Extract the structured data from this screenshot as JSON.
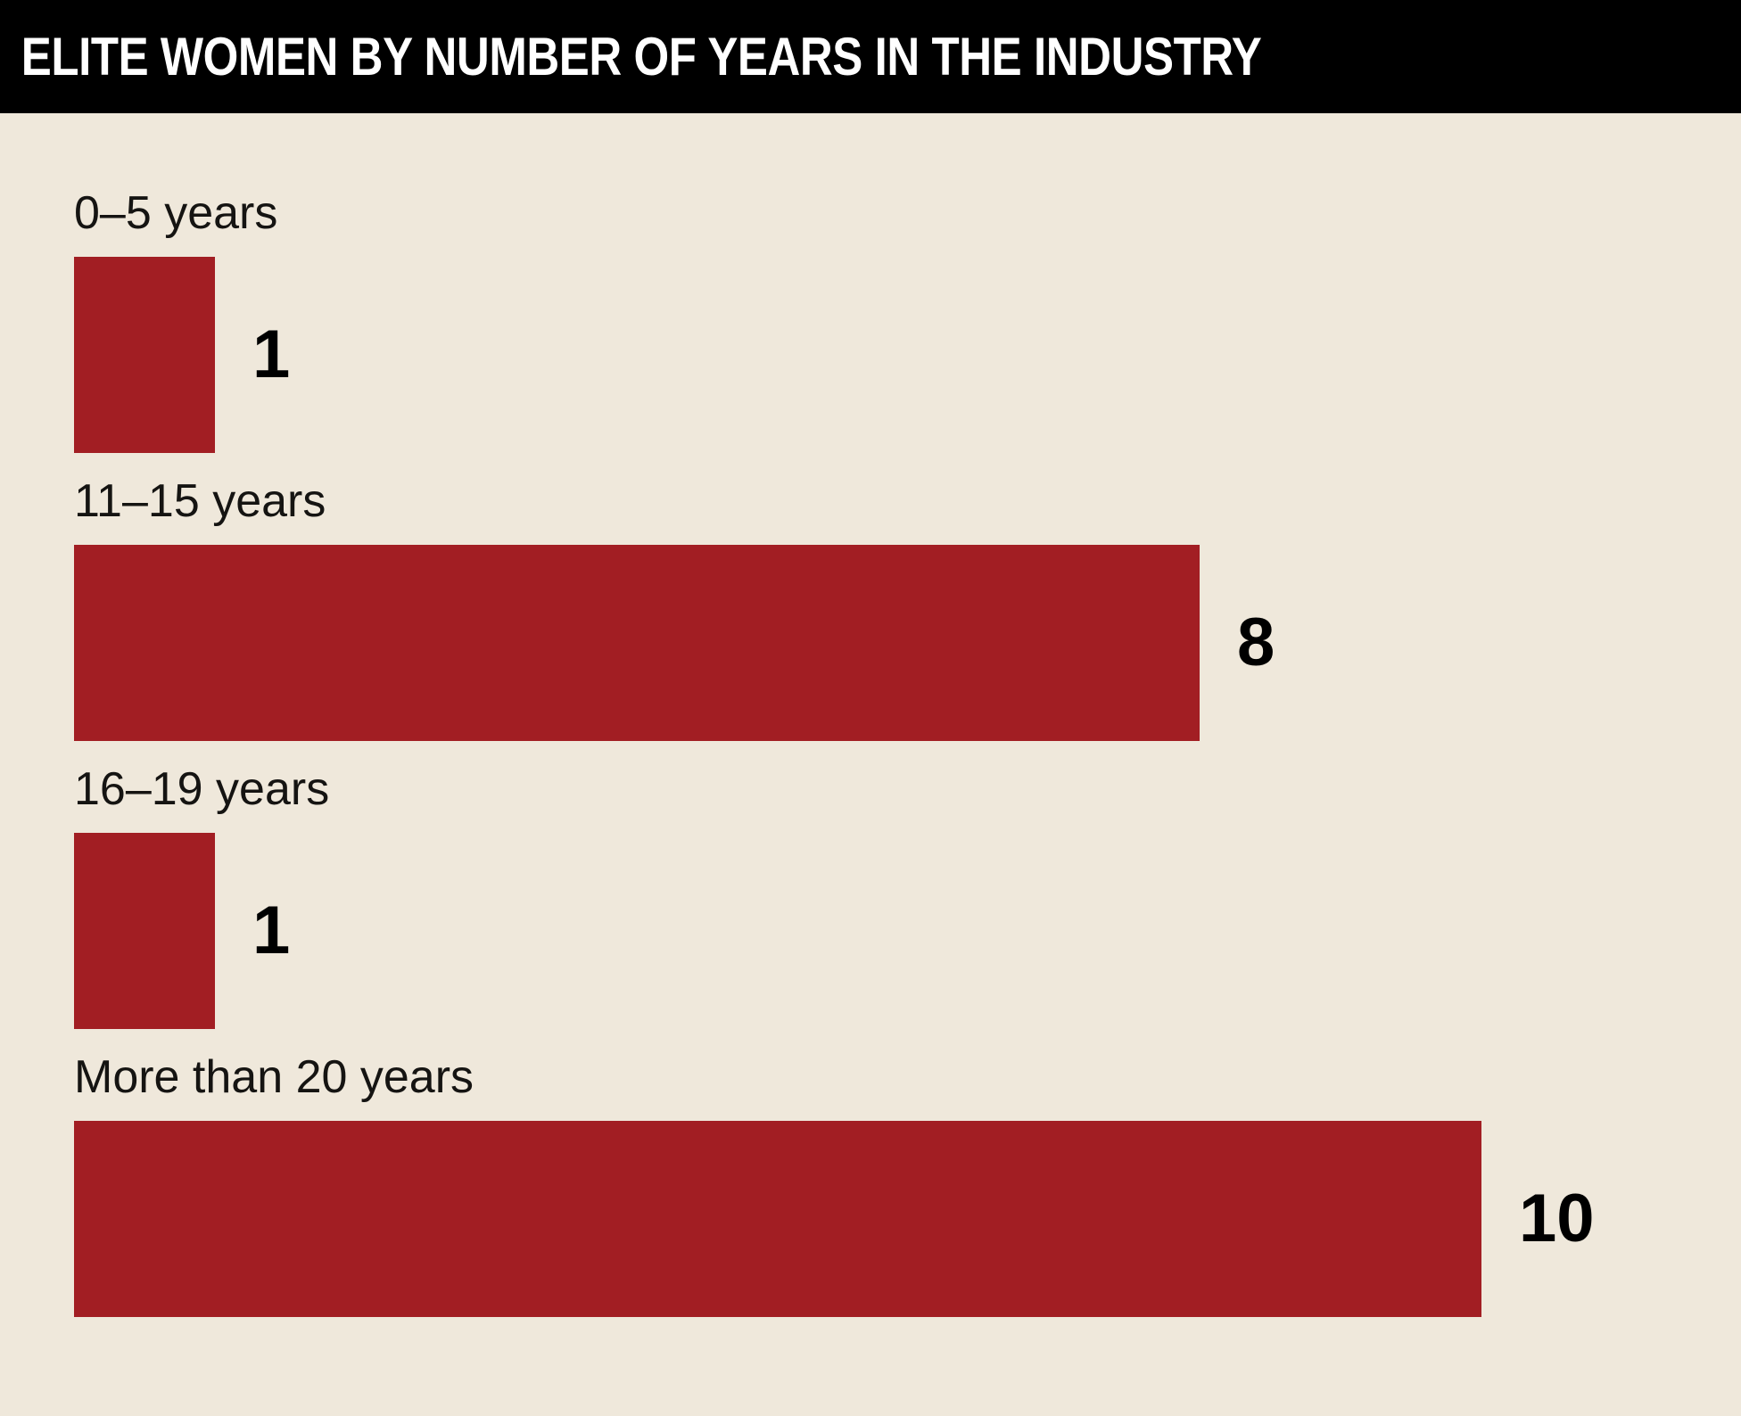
{
  "header": {
    "title": "ELITE WOMEN BY NUMBER OF YEARS IN THE INDUSTRY"
  },
  "chart_data": {
    "type": "bar",
    "orientation": "horizontal",
    "title": "ELITE WOMEN BY NUMBER OF YEARS IN THE INDUSTRY",
    "categories": [
      "0–5 years",
      "11–15 years",
      "16–19 years",
      "More than 20 years"
    ],
    "values": [
      1,
      8,
      1,
      10
    ],
    "xlabel": "",
    "ylabel": "",
    "xlim": [
      0,
      10
    ],
    "grid": false,
    "legend": false,
    "value_labels": [
      "1",
      "8",
      "1",
      "10"
    ],
    "bar_color": "#A21E23",
    "background_color": "#EFE8DB",
    "header_background": "#000000",
    "title_color": "#FFFFFF",
    "label_color": "#151412",
    "value_color": "#000000"
  }
}
